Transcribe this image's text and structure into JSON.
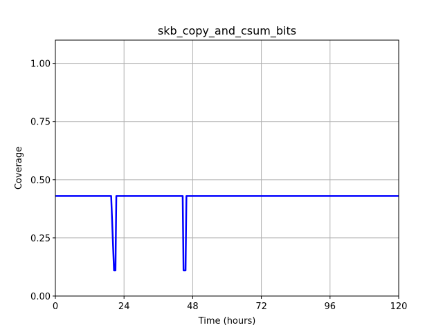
{
  "chart_data": {
    "type": "line",
    "title": "skb_copy_and_csum_bits",
    "xlabel": "Time (hours)",
    "ylabel": "Coverage",
    "xlim": [
      0,
      120
    ],
    "ylim": [
      0,
      1.1
    ],
    "xticks": [
      0,
      24,
      48,
      72,
      96,
      120
    ],
    "xtick_labels": [
      "0",
      "24",
      "48",
      "72",
      "96",
      "120"
    ],
    "yticks": [
      0,
      0.25,
      0.5,
      0.75,
      1.0
    ],
    "ytick_labels": [
      "0.00",
      "0.25",
      "0.50",
      "0.75",
      "1.00"
    ],
    "grid": true,
    "series": [
      {
        "color": "#0000ff",
        "x": [
          0,
          19.5,
          20.5,
          21,
          21.3,
          44.5,
          44.8,
          45.5,
          45.8,
          120
        ],
        "y": [
          0.43,
          0.43,
          0.11,
          0.11,
          0.43,
          0.43,
          0.11,
          0.11,
          0.43,
          0.43
        ]
      }
    ]
  }
}
